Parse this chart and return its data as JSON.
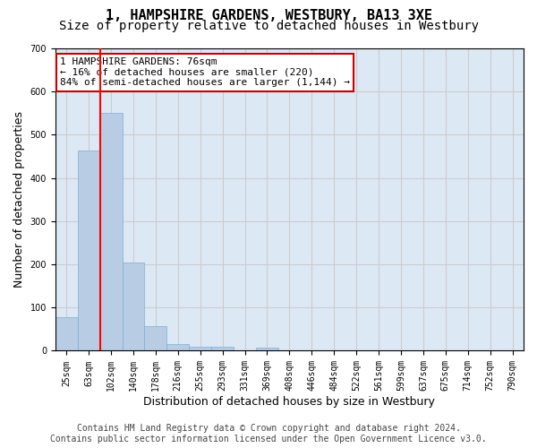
{
  "title": "1, HAMPSHIRE GARDENS, WESTBURY, BA13 3XE",
  "subtitle": "Size of property relative to detached houses in Westbury",
  "xlabel": "Distribution of detached houses by size in Westbury",
  "ylabel": "Number of detached properties",
  "bar_values": [
    78,
    463,
    550,
    204,
    57,
    15,
    10,
    10,
    0,
    8,
    0,
    0,
    0,
    0,
    0,
    0,
    0,
    0,
    0,
    0,
    0
  ],
  "categories": [
    "25sqm",
    "63sqm",
    "102sqm",
    "140sqm",
    "178sqm",
    "216sqm",
    "255sqm",
    "293sqm",
    "331sqm",
    "369sqm",
    "408sqm",
    "446sqm",
    "484sqm",
    "522sqm",
    "561sqm",
    "599sqm",
    "637sqm",
    "675sqm",
    "714sqm",
    "752sqm",
    "790sqm"
  ],
  "bar_color": "#b8cce4",
  "bar_edgecolor": "#7bafd4",
  "grid_color": "#cccccc",
  "background_color": "#dde8f5",
  "red_line_x": 1.5,
  "annotation_text": "1 HAMPSHIRE GARDENS: 76sqm\n← 16% of detached houses are smaller (220)\n84% of semi-detached houses are larger (1,144) →",
  "annotation_box_color": "#ffffff",
  "annotation_box_edgecolor": "#cc0000",
  "ylim": [
    0,
    700
  ],
  "yticks": [
    0,
    100,
    200,
    300,
    400,
    500,
    600,
    700
  ],
  "footer": "Contains HM Land Registry data © Crown copyright and database right 2024.\nContains public sector information licensed under the Open Government Licence v3.0.",
  "title_fontsize": 11,
  "subtitle_fontsize": 10,
  "xlabel_fontsize": 9,
  "ylabel_fontsize": 9,
  "tick_fontsize": 7,
  "annotation_fontsize": 8,
  "footer_fontsize": 7
}
